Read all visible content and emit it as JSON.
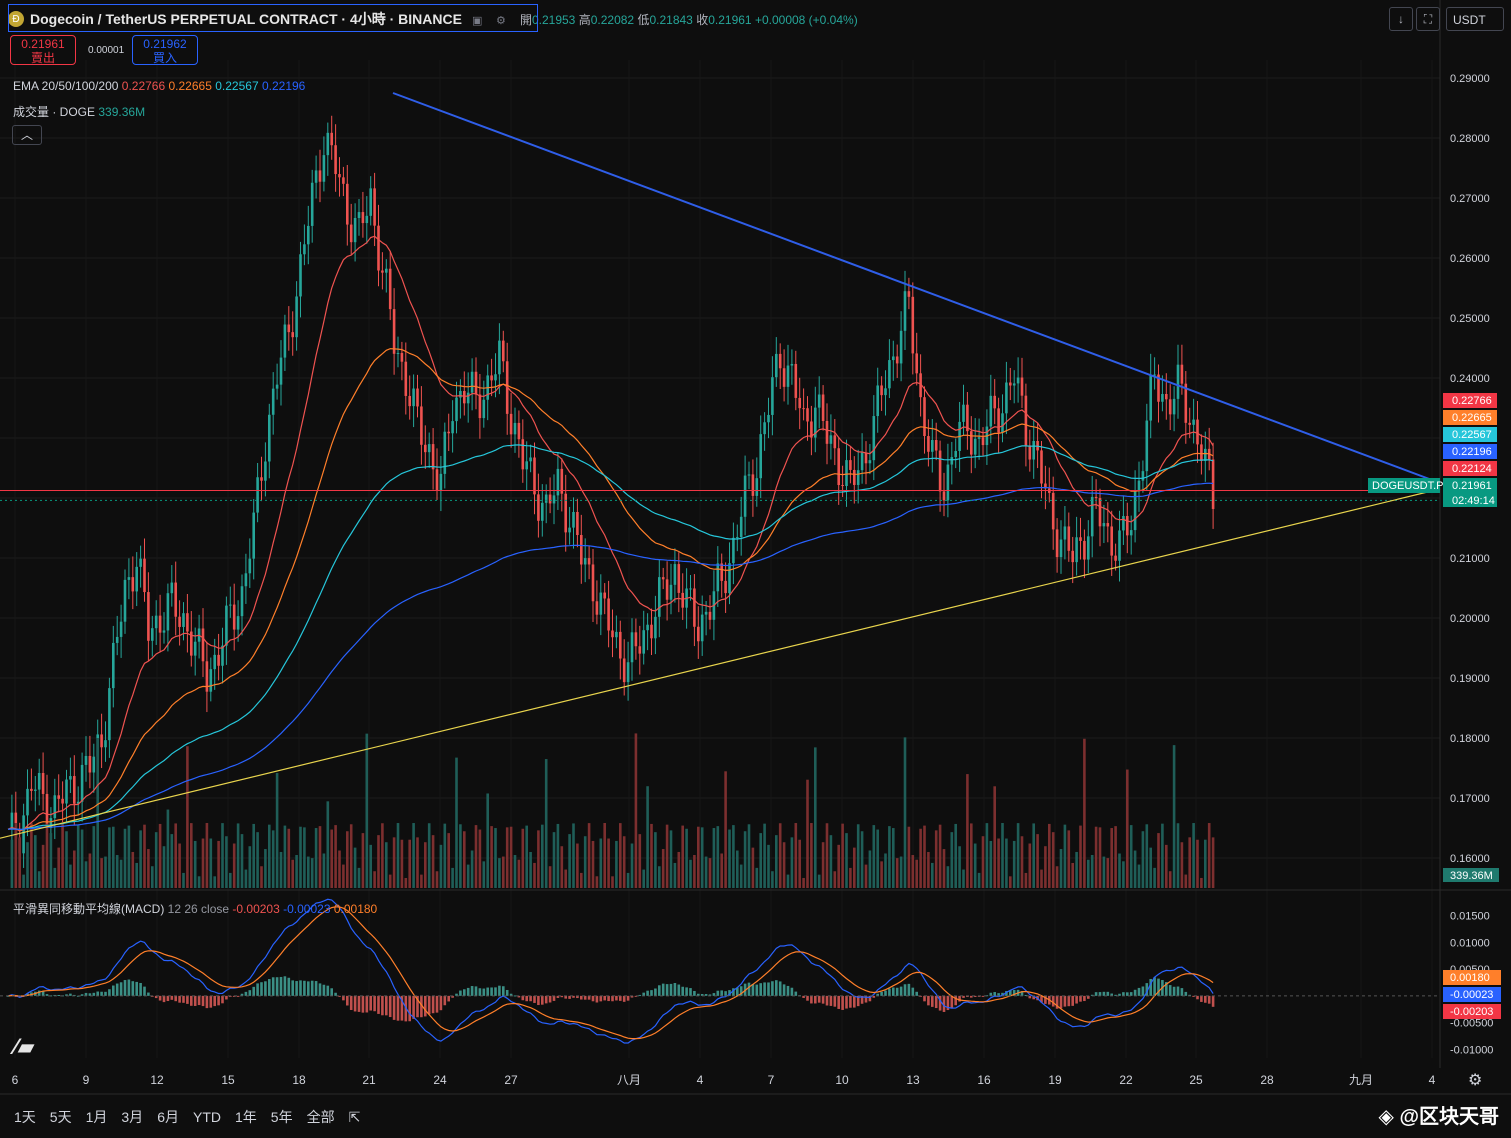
{
  "header": {
    "title": "Dogecoin / TetherUS PERPETUAL CONTRACT · 4小時 · BINANCE",
    "open_label": "開",
    "open": "0.21953",
    "high_label": "高",
    "high": "0.22082",
    "low_label": "低",
    "low": "0.21843",
    "close_label": "收",
    "close": "0.21961",
    "change": "+0.00008 (+0.04%)"
  },
  "trade": {
    "sell_price": "0.21961",
    "sell_label": "賣出",
    "spread": "0.00001",
    "buy_price": "0.21962",
    "buy_label": "買入"
  },
  "indicators": {
    "ema_label": "EMA 20/50/100/200",
    "ema_values": [
      "0.22766",
      "0.22665",
      "0.22567",
      "0.22196"
    ],
    "volume_label": "成交量 · DOGE",
    "volume_value": "339.36M",
    "macd_label": "平滑異同移動平均線(MACD)",
    "macd_params": "12 26 close",
    "macd_values": [
      "-0.00203",
      "-0.00023",
      "0.00180"
    ]
  },
  "toolbar": {
    "currency": "USDT"
  },
  "colors": {
    "up": "#26a69a",
    "down": "#ef5350",
    "ema20": "#ef5350",
    "ema50": "#ff7f2a",
    "ema100": "#26c6da",
    "ema200": "#2962ff",
    "trend_upper": "#2f5ee8",
    "trend_lower": "#e8d44d",
    "hline": "#f23645"
  },
  "chart_data": {
    "type": "candlestick",
    "symbol": "DOGEUSDT.P",
    "ylim": [
      0.155,
      0.293
    ],
    "y_ticks": [
      "0.29000",
      "0.28000",
      "0.27000",
      "0.26000",
      "0.25000",
      "0.24000",
      "0.23000",
      "0.22000",
      "0.21000",
      "0.20000",
      "0.19000",
      "0.18000",
      "0.17000",
      "0.16000"
    ],
    "x_ticks": [
      "6",
      "9",
      "12",
      "15",
      "18",
      "21",
      "24",
      "27",
      "八月",
      "4",
      "7",
      "10",
      "13",
      "16",
      "19",
      "22",
      "25",
      "28",
      "九月",
      "4"
    ],
    "last_price": "0.21961",
    "countdown": "02:49:14",
    "horizontal_line": "0.22124",
    "price_labels": [
      {
        "value": "0.22766",
        "color": "#f23645"
      },
      {
        "value": "0.22665",
        "color": "#ff7f2a"
      },
      {
        "value": "0.22567",
        "color": "#26c6da"
      },
      {
        "value": "0.22196",
        "color": "#2962ff"
      },
      {
        "value": "0.22124",
        "color": "#f23645"
      },
      {
        "value": "0.21961",
        "color": "#089981"
      }
    ],
    "volume_last": "339.36M",
    "close_path": [
      [
        0,
        0.163
      ],
      [
        3,
        0.165
      ],
      [
        6,
        0.172
      ],
      [
        9,
        0.17
      ],
      [
        12,
        0.168
      ],
      [
        15,
        0.171
      ],
      [
        18,
        0.173
      ],
      [
        21,
        0.175
      ],
      [
        24,
        0.18
      ],
      [
        27,
        0.192
      ],
      [
        30,
        0.205
      ],
      [
        33,
        0.21
      ],
      [
        36,
        0.198
      ],
      [
        39,
        0.2
      ],
      [
        42,
        0.202
      ],
      [
        45,
        0.2
      ],
      [
        48,
        0.195
      ],
      [
        51,
        0.191
      ],
      [
        54,
        0.194
      ],
      [
        57,
        0.2
      ],
      [
        60,
        0.204
      ],
      [
        63,
        0.215
      ],
      [
        66,
        0.23
      ],
      [
        69,
        0.24
      ],
      [
        72,
        0.248
      ],
      [
        75,
        0.258
      ],
      [
        78,
        0.27
      ],
      [
        81,
        0.28
      ],
      [
        84,
        0.275
      ],
      [
        87,
        0.268
      ],
      [
        90,
        0.264
      ],
      [
        93,
        0.27
      ],
      [
        96,
        0.258
      ],
      [
        99,
        0.246
      ],
      [
        102,
        0.24
      ],
      [
        105,
        0.232
      ],
      [
        108,
        0.228
      ],
      [
        111,
        0.222
      ],
      [
        114,
        0.236
      ],
      [
        117,
        0.238
      ],
      [
        120,
        0.236
      ],
      [
        123,
        0.239
      ],
      [
        126,
        0.243
      ],
      [
        129,
        0.234
      ],
      [
        132,
        0.226
      ],
      [
        135,
        0.222
      ],
      [
        138,
        0.218
      ],
      [
        141,
        0.222
      ],
      [
        144,
        0.217
      ],
      [
        147,
        0.21
      ],
      [
        150,
        0.206
      ],
      [
        153,
        0.2
      ],
      [
        156,
        0.196
      ],
      [
        159,
        0.192
      ],
      [
        162,
        0.196
      ],
      [
        165,
        0.2
      ],
      [
        168,
        0.204
      ],
      [
        171,
        0.208
      ],
      [
        174,
        0.202
      ],
      [
        177,
        0.199
      ],
      [
        180,
        0.202
      ],
      [
        183,
        0.206
      ],
      [
        186,
        0.212
      ],
      [
        189,
        0.22
      ],
      [
        192,
        0.226
      ],
      [
        195,
        0.235
      ],
      [
        198,
        0.244
      ],
      [
        201,
        0.24
      ],
      [
        204,
        0.232
      ],
      [
        207,
        0.236
      ],
      [
        210,
        0.23
      ],
      [
        213,
        0.226
      ],
      [
        216,
        0.222
      ],
      [
        219,
        0.226
      ],
      [
        222,
        0.232
      ],
      [
        225,
        0.24
      ],
      [
        228,
        0.246
      ],
      [
        231,
        0.252
      ],
      [
        234,
        0.236
      ],
      [
        237,
        0.226
      ],
      [
        240,
        0.222
      ],
      [
        243,
        0.23
      ],
      [
        246,
        0.232
      ],
      [
        249,
        0.229
      ],
      [
        252,
        0.233
      ],
      [
        255,
        0.236
      ],
      [
        258,
        0.24
      ],
      [
        261,
        0.232
      ],
      [
        264,
        0.226
      ],
      [
        267,
        0.218
      ],
      [
        270,
        0.213
      ],
      [
        273,
        0.21
      ],
      [
        276,
        0.214
      ],
      [
        279,
        0.218
      ],
      [
        282,
        0.214
      ],
      [
        285,
        0.212
      ],
      [
        288,
        0.216
      ],
      [
        291,
        0.228
      ],
      [
        294,
        0.24
      ],
      [
        297,
        0.236
      ],
      [
        300,
        0.238
      ],
      [
        303,
        0.234
      ],
      [
        306,
        0.228
      ],
      [
        309,
        0.22
      ]
    ]
  }
}
